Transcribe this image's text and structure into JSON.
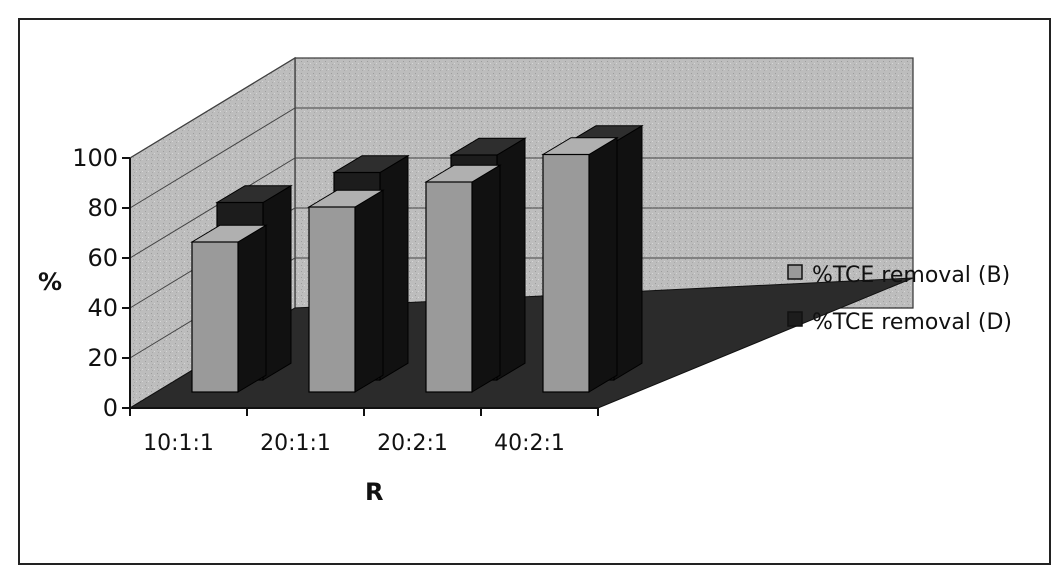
{
  "chart_data": {
    "type": "bar",
    "subtype": "3d-clustered-column",
    "title": "",
    "xlabel": "R",
    "ylabel": "%",
    "ylim": [
      0,
      100
    ],
    "yticks": [
      0,
      20,
      40,
      60,
      80,
      100
    ],
    "categories": [
      "10:1:1",
      "20:1:1",
      "20:2:1",
      "40:2:1"
    ],
    "series": [
      {
        "name": "%TCE removal (B)",
        "values": [
          60,
          74,
          84,
          95
        ],
        "color": "#9a9a9a"
      },
      {
        "name": "%TCE removal (D)",
        "values": [
          71,
          83,
          90,
          95
        ],
        "color": "#1c1c1c"
      }
    ],
    "legend": "right",
    "grid": true
  },
  "colors": {
    "wall": "#b9b9b9",
    "floor": "#2b2b2b",
    "bar_b": "#9a9a9a",
    "bar_d": "#1c1c1c"
  }
}
